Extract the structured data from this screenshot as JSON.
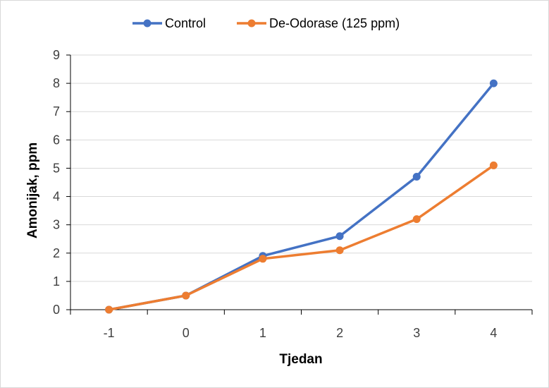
{
  "chart_data": {
    "type": "line",
    "title": "",
    "xlabel": "Tjedan",
    "ylabel": "Amonijak, ppm",
    "categories": [
      "-1",
      "0",
      "1",
      "2",
      "3",
      "4"
    ],
    "ylim": [
      0,
      9
    ],
    "yticks": [
      "0",
      "1",
      "2",
      "3",
      "4",
      "5",
      "6",
      "7",
      "8",
      "9"
    ],
    "grid": true,
    "legend_position": "top",
    "series": [
      {
        "name": "Control",
        "color": "#4472c4",
        "values": [
          0,
          0.5,
          1.9,
          2.6,
          4.7,
          8.0
        ]
      },
      {
        "name": "De-Odorase (125 ppm)",
        "color": "#ed7d31",
        "values": [
          0,
          0.5,
          1.8,
          2.1,
          3.2,
          5.1
        ]
      }
    ]
  }
}
